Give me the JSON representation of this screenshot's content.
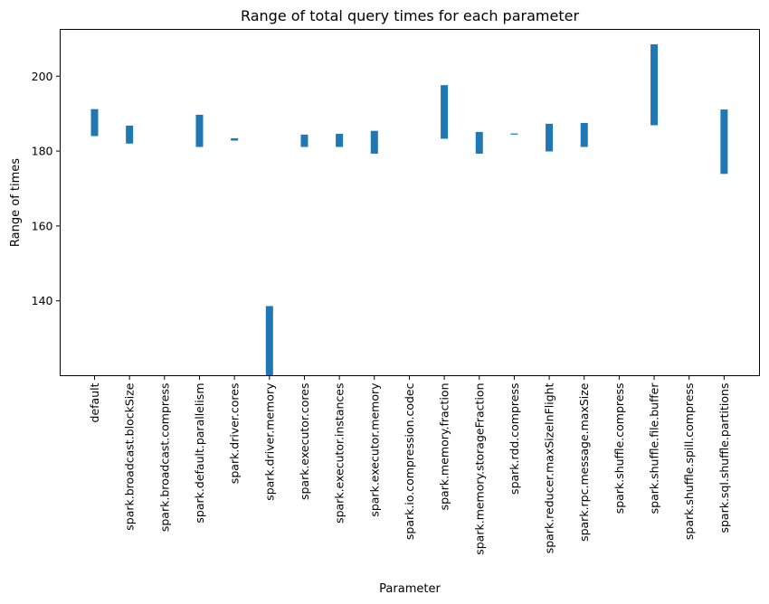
{
  "chart_data": {
    "type": "bar",
    "title": "Range of total query times for each parameter",
    "xlabel": "Parameter",
    "ylabel": "Range of times",
    "ylim": [
      120,
      212.5
    ],
    "yticks": [
      140,
      160,
      180,
      200
    ],
    "grid": false,
    "bar_color": "#1f77b4",
    "categories": [
      "default",
      "spark.broadcast.blockSize",
      "spark.broadcast.compress",
      "spark.default.parallelism",
      "spark.driver.cores",
      "spark.driver.memory",
      "spark.executor.cores",
      "spark.executor.instances",
      "spark.executor.memory",
      "spark.io.compression.codec",
      "spark.memory.fraction",
      "spark.memory.storageFraction",
      "spark.rdd.compress",
      "spark.reducer.maxSizeInFlight",
      "spark.rpc.message.maxSize",
      "spark.shuffle.compress",
      "spark.shuffle.file.buffer",
      "spark.shuffle.spill.compress",
      "spark.sql.shuffle.partitions"
    ],
    "ranges": [
      [
        184.0,
        191.2
      ],
      [
        182.0,
        186.8
      ],
      null,
      [
        181.1,
        189.7
      ],
      [
        182.8,
        183.4
      ],
      [
        120.0,
        138.6
      ],
      [
        181.1,
        184.4
      ],
      [
        181.1,
        184.6
      ],
      [
        179.3,
        185.4
      ],
      null,
      [
        183.3,
        197.6
      ],
      [
        179.3,
        185.1
      ],
      [
        184.4,
        184.7
      ],
      [
        179.9,
        187.3
      ],
      [
        181.1,
        187.5
      ],
      null,
      [
        186.9,
        208.5
      ],
      null,
      [
        173.9,
        191.1
      ]
    ]
  }
}
